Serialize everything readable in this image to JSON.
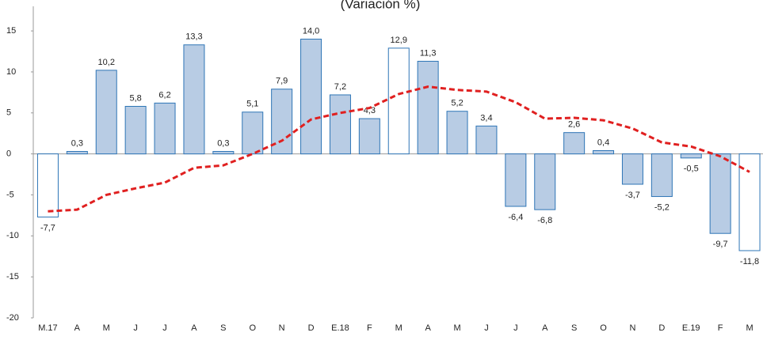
{
  "chart_data": {
    "type": "bar",
    "title": "(Variación %)",
    "categories": [
      "M.17",
      "A",
      "M",
      "J",
      "J",
      "A",
      "S",
      "O",
      "N",
      "D",
      "E.18",
      "F",
      "M",
      "A",
      "M",
      "J",
      "J",
      "A",
      "S",
      "O",
      "N",
      "D",
      "E.19",
      "F",
      "M"
    ],
    "series": [
      {
        "type": "bar",
        "color": "#b8cce4",
        "edge_color": "#2e75b6",
        "colors": [
          "#ffffff",
          "#b8cce4",
          "#b8cce4",
          "#b8cce4",
          "#b8cce4",
          "#b8cce4",
          "#b8cce4",
          "#b8cce4",
          "#b8cce4",
          "#b8cce4",
          "#b8cce4",
          "#b8cce4",
          "#ffffff",
          "#b8cce4",
          "#b8cce4",
          "#b8cce4",
          "#b8cce4",
          "#b8cce4",
          "#b8cce4",
          "#b8cce4",
          "#b8cce4",
          "#b8cce4",
          "#b8cce4",
          "#b8cce4",
          "#ffffff"
        ],
        "values": [
          -7.7,
          0.3,
          10.2,
          5.8,
          6.2,
          13.3,
          0.3,
          5.1,
          7.9,
          14.0,
          7.2,
          4.3,
          12.9,
          11.3,
          5.2,
          3.4,
          -6.4,
          -6.8,
          2.6,
          0.4,
          -3.7,
          -5.2,
          -0.5,
          -9.7,
          -11.8
        ],
        "value_labels": [
          "-7,7",
          "0,3",
          "10,2",
          "5,8",
          "6,2",
          "13,3",
          "0,3",
          "5,1",
          "7,9",
          "14,0",
          "7,2",
          "4,3",
          "12,9",
          "11,3",
          "5,2",
          "3,4",
          "-6,4",
          "-6,8",
          "2,6",
          "0,4",
          "-3,7",
          "-5,2",
          "-0,5",
          "-9,7",
          "-11,8"
        ]
      },
      {
        "type": "line",
        "color": "#e02020",
        "dashed": true,
        "values": [
          -7.0,
          -6.8,
          -5.0,
          -4.2,
          -3.5,
          -1.7,
          -1.4,
          0.0,
          1.6,
          4.2,
          5.0,
          5.6,
          7.3,
          8.2,
          7.8,
          7.6,
          6.3,
          4.3,
          4.4,
          4.1,
          3.1,
          1.4,
          0.9,
          -0.3,
          -2.2
        ]
      }
    ],
    "ylim": [
      -20,
      18
    ],
    "yticks": [
      -20,
      -15,
      -10,
      -5,
      0,
      5,
      10,
      15
    ]
  }
}
